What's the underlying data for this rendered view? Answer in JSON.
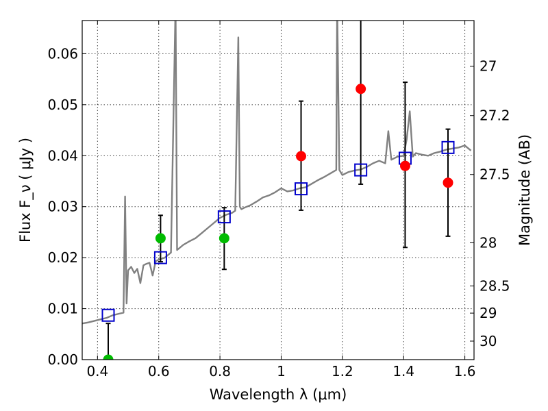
{
  "chart_data": {
    "type": "scatter",
    "title": "",
    "xlabel": "Wavelength  λ (μm)",
    "ylabel": "Flux  F_ν  ( μJy )",
    "ylabel_right": "Magnitude (AB)",
    "xlim": [
      0.35,
      1.63
    ],
    "ylim": [
      0.0,
      0.0665
    ],
    "grid": true,
    "x_ticks": [
      0.4,
      0.6,
      0.8,
      1.0,
      1.2,
      1.4,
      1.6
    ],
    "x_tick_labels": [
      "0.4",
      "0.6",
      "0.8",
      "1",
      "1.2",
      "1.4",
      "1.6"
    ],
    "y_ticks": [
      0.0,
      0.01,
      0.02,
      0.03,
      0.04,
      0.05,
      0.06
    ],
    "y_tick_labels": [
      "0.00",
      "0.01",
      "0.02",
      "0.03",
      "0.04",
      "0.05",
      "0.06"
    ],
    "right_axis_ticks": [
      {
        "label": "27",
        "mag": 27.0
      },
      {
        "label": "27.2",
        "mag": 27.2
      },
      {
        "label": "27.5",
        "mag": 27.5
      },
      {
        "label": "28",
        "mag": 28.0
      },
      {
        "label": "28.5",
        "mag": 28.5
      },
      {
        "label": "29",
        "mag": 29.0
      },
      {
        "label": "30",
        "mag": 30.0
      }
    ],
    "colors": {
      "model": "#808080",
      "observed_detection": "#ff0000",
      "observed_green": "#00bb00",
      "model_photometry": "#0000cc",
      "errorbar": "#000000"
    },
    "series": [
      {
        "type": "line",
        "points": [
          [
            0.35,
            0.0071
          ],
          [
            0.37,
            0.0073
          ],
          [
            0.39,
            0.0076
          ],
          [
            0.41,
            0.0079
          ],
          [
            0.43,
            0.0082
          ],
          [
            0.45,
            0.0087
          ],
          [
            0.47,
            0.009
          ],
          [
            0.485,
            0.0092
          ],
          [
            0.49,
            0.032
          ],
          [
            0.495,
            0.011
          ],
          [
            0.5,
            0.0175
          ],
          [
            0.51,
            0.0182
          ],
          [
            0.52,
            0.017
          ],
          [
            0.53,
            0.0178
          ],
          [
            0.54,
            0.015
          ],
          [
            0.55,
            0.0185
          ],
          [
            0.56,
            0.0188
          ],
          [
            0.57,
            0.019
          ],
          [
            0.58,
            0.0165
          ],
          [
            0.59,
            0.0193
          ],
          [
            0.6,
            0.0196
          ],
          [
            0.62,
            0.02
          ],
          [
            0.64,
            0.021
          ],
          [
            0.655,
            0.07
          ],
          [
            0.66,
            0.0215
          ],
          [
            0.68,
            0.0225
          ],
          [
            0.7,
            0.0232
          ],
          [
            0.72,
            0.0238
          ],
          [
            0.74,
            0.0248
          ],
          [
            0.76,
            0.0258
          ],
          [
            0.78,
            0.0268
          ],
          [
            0.8,
            0.0278
          ],
          [
            0.82,
            0.0284
          ],
          [
            0.84,
            0.0288
          ],
          [
            0.85,
            0.0292
          ],
          [
            0.86,
            0.0632
          ],
          [
            0.865,
            0.03
          ],
          [
            0.87,
            0.0295
          ],
          [
            0.88,
            0.0298
          ],
          [
            0.9,
            0.0303
          ],
          [
            0.92,
            0.031
          ],
          [
            0.94,
            0.0318
          ],
          [
            0.96,
            0.0322
          ],
          [
            0.98,
            0.0328
          ],
          [
            1.0,
            0.0336
          ],
          [
            1.02,
            0.033
          ],
          [
            1.04,
            0.0332
          ],
          [
            1.06,
            0.0336
          ],
          [
            1.08,
            0.0338
          ],
          [
            1.1,
            0.0345
          ],
          [
            1.12,
            0.0352
          ],
          [
            1.14,
            0.0358
          ],
          [
            1.16,
            0.0365
          ],
          [
            1.18,
            0.0372
          ],
          [
            1.183,
            0.07
          ],
          [
            1.19,
            0.0372
          ],
          [
            1.2,
            0.0362
          ],
          [
            1.22,
            0.0368
          ],
          [
            1.24,
            0.0371
          ],
          [
            1.26,
            0.0373
          ],
          [
            1.28,
            0.0378
          ],
          [
            1.3,
            0.0385
          ],
          [
            1.32,
            0.039
          ],
          [
            1.34,
            0.0385
          ],
          [
            1.35,
            0.0448
          ],
          [
            1.36,
            0.0392
          ],
          [
            1.38,
            0.0398
          ],
          [
            1.4,
            0.04
          ],
          [
            1.41,
            0.0432
          ],
          [
            1.42,
            0.0487
          ],
          [
            1.43,
            0.0398
          ],
          [
            1.44,
            0.0405
          ],
          [
            1.46,
            0.0402
          ],
          [
            1.48,
            0.04
          ],
          [
            1.5,
            0.0405
          ],
          [
            1.52,
            0.0408
          ],
          [
            1.54,
            0.0412
          ],
          [
            1.56,
            0.0414
          ],
          [
            1.58,
            0.0416
          ],
          [
            1.6,
            0.042
          ],
          [
            1.62,
            0.041
          ]
        ]
      },
      {
        "type": "scatter",
        "marker": "square",
        "points": [
          [
            0.435,
            0.0087
          ],
          [
            0.606,
            0.02
          ],
          [
            0.814,
            0.028
          ],
          [
            1.065,
            0.0335
          ],
          [
            1.26,
            0.0372
          ],
          [
            1.405,
            0.0395
          ],
          [
            1.545,
            0.0416
          ]
        ]
      },
      {
        "type": "scatter",
        "marker": "circle",
        "color": "green",
        "points": [
          [
            0.435,
            0.0,
            0.0,
            0.0071
          ],
          [
            0.606,
            0.0238,
            0.0192,
            0.0283
          ],
          [
            0.814,
            0.0238,
            0.0177,
            0.0298
          ]
        ]
      },
      {
        "type": "scatter",
        "marker": "circle",
        "color": "red",
        "points": [
          [
            1.065,
            0.0399,
            0.0293,
            0.0507
          ],
          [
            1.26,
            0.0531,
            0.0344,
            0.07
          ],
          [
            1.405,
            0.038,
            0.022,
            0.0544
          ],
          [
            1.545,
            0.0347,
            0.0242,
            0.0452
          ]
        ]
      }
    ]
  }
}
